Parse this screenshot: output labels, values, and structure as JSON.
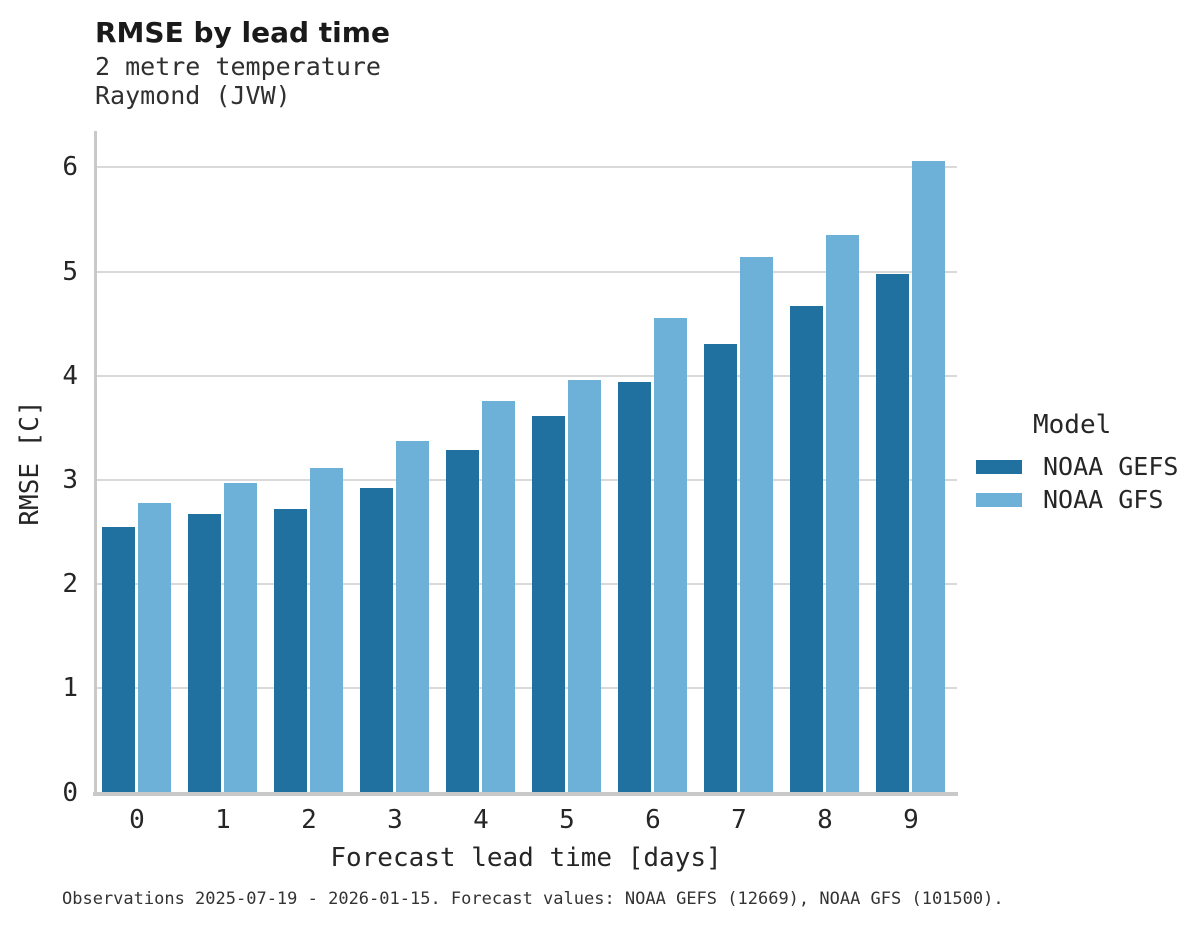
{
  "chart_data": {
    "type": "bar",
    "grouped": true,
    "title": "RMSE by lead time",
    "subtitle": [
      "2 metre temperature",
      "Raymond (JVW)"
    ],
    "xlabel": "Forecast lead time [days]",
    "ylabel": "RMSE [C]",
    "categories": [
      "0",
      "1",
      "2",
      "3",
      "4",
      "5",
      "6",
      "7",
      "8",
      "9"
    ],
    "series": [
      {
        "name": "NOAA GEFS",
        "color": "#20719f",
        "values": [
          2.55,
          2.67,
          2.72,
          2.92,
          3.29,
          3.61,
          3.94,
          4.3,
          4.67,
          4.98
        ]
      },
      {
        "name": "NOAA GFS",
        "color": "#6db1d9",
        "values": [
          2.78,
          2.97,
          3.11,
          3.37,
          3.76,
          3.96,
          4.55,
          5.14,
          5.35,
          6.06
        ]
      }
    ],
    "ylim": [
      0,
      6.35
    ],
    "yticks": [
      0,
      1,
      2,
      3,
      4,
      5,
      6
    ],
    "grid": "horizontal",
    "legend": {
      "title": "Model",
      "position": "right"
    },
    "colors": {
      "grid": "#d9d9d9",
      "spine": "#c9c9c9",
      "text": "#262626"
    }
  },
  "caption": "Observations 2025-07-19 - 2026-01-15. Forecast values: NOAA GEFS (12669), NOAA GFS (101500)."
}
